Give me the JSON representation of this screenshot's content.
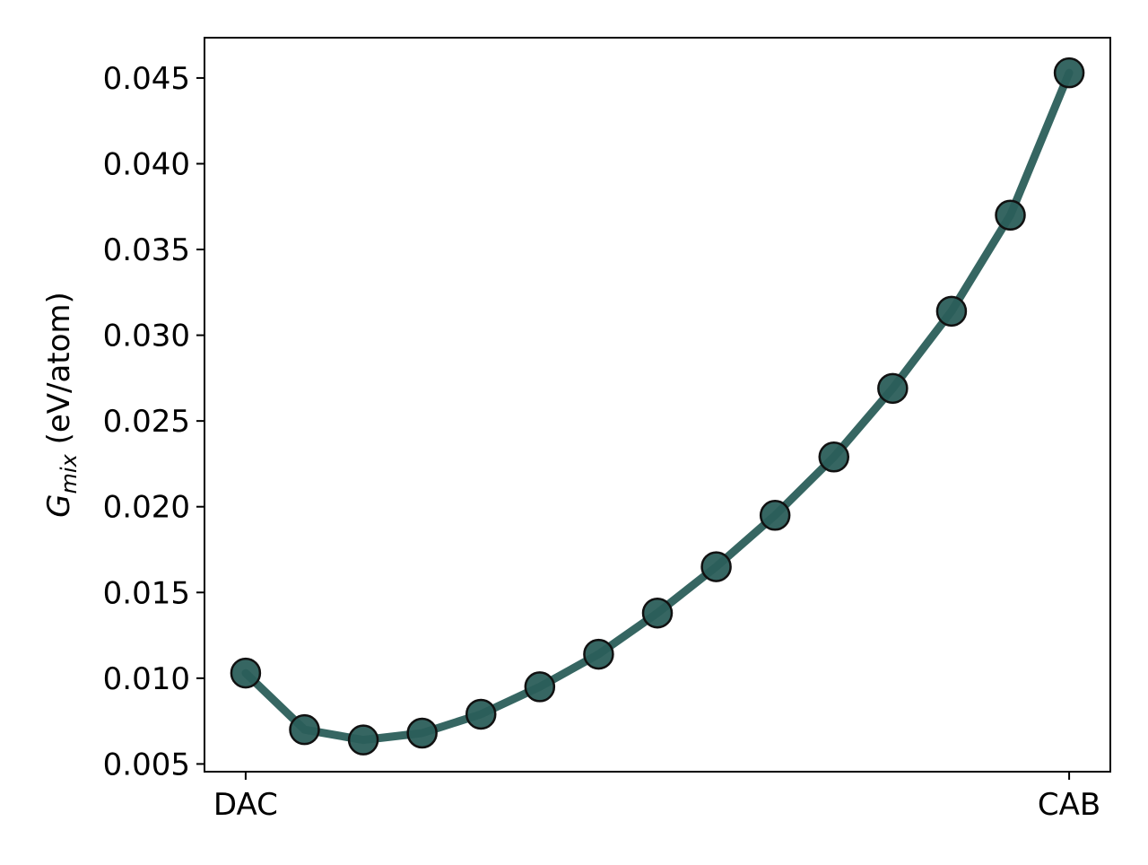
{
  "chart_data": {
    "type": "line",
    "title": "",
    "xlabel": "",
    "ylabel": {
      "symbol": "G",
      "subscript": "mix",
      "unit": " (eV/atom)"
    },
    "x_tick_labels": [
      "DAC",
      "CAB"
    ],
    "x": [
      0,
      1,
      2,
      3,
      4,
      5,
      6,
      7,
      8,
      9,
      10,
      11,
      12,
      13,
      14
    ],
    "xlim": [
      -0.7,
      14.7
    ],
    "ylim": [
      0.00455,
      0.04735
    ],
    "y_ticks": [
      0.005,
      0.01,
      0.015,
      0.02,
      0.025,
      0.03,
      0.035,
      0.04,
      0.045
    ],
    "y_tick_labels": [
      "0.005",
      "0.010",
      "0.015",
      "0.020",
      "0.025",
      "0.030",
      "0.035",
      "0.040",
      "0.045"
    ],
    "series": [
      {
        "values": [
          0.0103,
          0.007,
          0.0064,
          0.0068,
          0.0079,
          0.0095,
          0.0114,
          0.0138,
          0.0165,
          0.0195,
          0.0229,
          0.0269,
          0.0314,
          0.037,
          0.0453
        ],
        "color": "#2b5e5a",
        "marker": "circle",
        "marker_edge": "#111111"
      }
    ],
    "grid": false,
    "legend": "none"
  }
}
